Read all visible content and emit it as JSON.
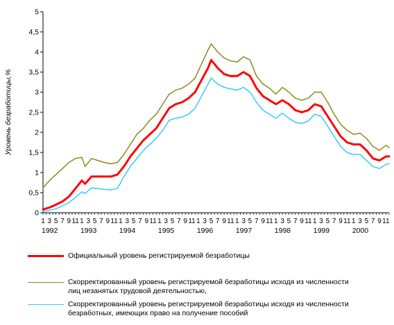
{
  "chart_data": {
    "type": "line",
    "title": "",
    "ylabel": "Уровень безработицы,%",
    "xlabel": "",
    "ylim": [
      0,
      5
    ],
    "yticks": [
      "0",
      "0,5",
      "1",
      "1,5",
      "2",
      "2,5",
      "3",
      "3,5",
      "4",
      "4,5",
      "5"
    ],
    "grid": false,
    "legend_position": "bottom",
    "month_tick_labels": "1 3 5 7 9 11",
    "year_labels": [
      "1992",
      "1993",
      "1994",
      "1995",
      "1996",
      "1997",
      "1998",
      "1999",
      "2000"
    ],
    "x_start": "1992-01",
    "x_end": "2000-12",
    "series": [
      {
        "name": "Официальный уровень регистрируемой безработицы",
        "color": "#ff0000",
        "width": 3,
        "points": [
          [
            "1992-01",
            0.08
          ],
          [
            "1992-03",
            0.13
          ],
          [
            "1992-05",
            0.2
          ],
          [
            "1992-07",
            0.28
          ],
          [
            "1992-09",
            0.4
          ],
          [
            "1992-11",
            0.6
          ],
          [
            "1993-01",
            0.8
          ],
          [
            "1993-02",
            0.72
          ],
          [
            "1993-04",
            0.9
          ],
          [
            "1993-06",
            0.9
          ],
          [
            "1993-08",
            0.9
          ],
          [
            "1993-10",
            0.9
          ],
          [
            "1993-12",
            0.95
          ],
          [
            "1994-02",
            1.15
          ],
          [
            "1994-04",
            1.4
          ],
          [
            "1994-06",
            1.6
          ],
          [
            "1994-08",
            1.8
          ],
          [
            "1994-10",
            1.95
          ],
          [
            "1994-12",
            2.1
          ],
          [
            "1995-02",
            2.35
          ],
          [
            "1995-04",
            2.6
          ],
          [
            "1995-06",
            2.7
          ],
          [
            "1995-08",
            2.75
          ],
          [
            "1995-10",
            2.85
          ],
          [
            "1995-12",
            3.0
          ],
          [
            "1996-02",
            3.3
          ],
          [
            "1996-04",
            3.6
          ],
          [
            "1996-05",
            3.8
          ],
          [
            "1996-07",
            3.6
          ],
          [
            "1996-09",
            3.45
          ],
          [
            "1996-11",
            3.4
          ],
          [
            "1997-01",
            3.4
          ],
          [
            "1997-03",
            3.5
          ],
          [
            "1997-05",
            3.4
          ],
          [
            "1997-07",
            3.1
          ],
          [
            "1997-09",
            2.9
          ],
          [
            "1997-11",
            2.8
          ],
          [
            "1998-01",
            2.7
          ],
          [
            "1998-03",
            2.8
          ],
          [
            "1998-05",
            2.7
          ],
          [
            "1998-07",
            2.55
          ],
          [
            "1998-09",
            2.5
          ],
          [
            "1998-11",
            2.55
          ],
          [
            "1999-01",
            2.7
          ],
          [
            "1999-03",
            2.65
          ],
          [
            "1999-05",
            2.4
          ],
          [
            "1999-07",
            2.15
          ],
          [
            "1999-09",
            1.9
          ],
          [
            "1999-11",
            1.75
          ],
          [
            "2000-01",
            1.7
          ],
          [
            "2000-03",
            1.7
          ],
          [
            "2000-05",
            1.55
          ],
          [
            "2000-07",
            1.35
          ],
          [
            "2000-09",
            1.3
          ],
          [
            "2000-11",
            1.4
          ],
          [
            "2000-12",
            1.4
          ]
        ]
      },
      {
        "name": "Скорректированный уровень регистрируемой безработицы исходя из численности лиц незанятых трудовой деятельностью,",
        "color": "#8b8b1a",
        "width": 1.5,
        "points": [
          [
            "1992-01",
            0.62
          ],
          [
            "1992-03",
            0.8
          ],
          [
            "1992-05",
            0.95
          ],
          [
            "1992-07",
            1.1
          ],
          [
            "1992-09",
            1.25
          ],
          [
            "1992-11",
            1.35
          ],
          [
            "1993-01",
            1.38
          ],
          [
            "1993-02",
            1.15
          ],
          [
            "1993-04",
            1.35
          ],
          [
            "1993-06",
            1.3
          ],
          [
            "1993-08",
            1.25
          ],
          [
            "1993-10",
            1.22
          ],
          [
            "1993-12",
            1.25
          ],
          [
            "1994-02",
            1.45
          ],
          [
            "1994-04",
            1.7
          ],
          [
            "1994-06",
            1.95
          ],
          [
            "1994-08",
            2.1
          ],
          [
            "1994-10",
            2.3
          ],
          [
            "1994-12",
            2.45
          ],
          [
            "1995-02",
            2.7
          ],
          [
            "1995-04",
            2.95
          ],
          [
            "1995-06",
            3.05
          ],
          [
            "1995-08",
            3.1
          ],
          [
            "1995-10",
            3.2
          ],
          [
            "1995-12",
            3.35
          ],
          [
            "1996-02",
            3.7
          ],
          [
            "1996-04",
            4.05
          ],
          [
            "1996-05",
            4.2
          ],
          [
            "1996-07",
            4.0
          ],
          [
            "1996-09",
            3.85
          ],
          [
            "1996-11",
            3.78
          ],
          [
            "1997-01",
            3.75
          ],
          [
            "1997-03",
            3.88
          ],
          [
            "1997-05",
            3.8
          ],
          [
            "1997-07",
            3.4
          ],
          [
            "1997-09",
            3.2
          ],
          [
            "1997-11",
            3.1
          ],
          [
            "1998-01",
            2.95
          ],
          [
            "1998-03",
            3.12
          ],
          [
            "1998-05",
            3.0
          ],
          [
            "1998-07",
            2.85
          ],
          [
            "1998-09",
            2.8
          ],
          [
            "1998-11",
            2.85
          ],
          [
            "1999-01",
            3.0
          ],
          [
            "1999-03",
            3.0
          ],
          [
            "1999-05",
            2.75
          ],
          [
            "1999-07",
            2.45
          ],
          [
            "1999-09",
            2.2
          ],
          [
            "1999-11",
            2.05
          ],
          [
            "2000-01",
            1.95
          ],
          [
            "2000-03",
            1.98
          ],
          [
            "2000-05",
            1.85
          ],
          [
            "2000-07",
            1.65
          ],
          [
            "2000-09",
            1.55
          ],
          [
            "2000-11",
            1.68
          ],
          [
            "2000-12",
            1.62
          ]
        ]
      },
      {
        "name": "Скорректированный уровень регистрируемой безработицы исходя из численности безработных, имеющих право на получение пособий",
        "color": "#33ccff",
        "width": 1.5,
        "points": [
          [
            "1992-01",
            0.03
          ],
          [
            "1992-03",
            0.06
          ],
          [
            "1992-05",
            0.1
          ],
          [
            "1992-07",
            0.17
          ],
          [
            "1992-09",
            0.25
          ],
          [
            "1992-11",
            0.38
          ],
          [
            "1993-01",
            0.52
          ],
          [
            "1993-02",
            0.48
          ],
          [
            "1993-04",
            0.62
          ],
          [
            "1993-06",
            0.6
          ],
          [
            "1993-08",
            0.58
          ],
          [
            "1993-10",
            0.57
          ],
          [
            "1993-12",
            0.6
          ],
          [
            "1994-02",
            0.9
          ],
          [
            "1994-04",
            1.15
          ],
          [
            "1994-06",
            1.35
          ],
          [
            "1994-08",
            1.55
          ],
          [
            "1994-10",
            1.7
          ],
          [
            "1994-12",
            1.85
          ],
          [
            "1995-02",
            2.05
          ],
          [
            "1995-04",
            2.3
          ],
          [
            "1995-06",
            2.35
          ],
          [
            "1995-08",
            2.38
          ],
          [
            "1995-10",
            2.45
          ],
          [
            "1995-12",
            2.6
          ],
          [
            "1996-02",
            2.9
          ],
          [
            "1996-04",
            3.2
          ],
          [
            "1996-05",
            3.35
          ],
          [
            "1996-07",
            3.2
          ],
          [
            "1996-09",
            3.12
          ],
          [
            "1996-11",
            3.08
          ],
          [
            "1997-01",
            3.05
          ],
          [
            "1997-03",
            3.12
          ],
          [
            "1997-05",
            3.0
          ],
          [
            "1997-07",
            2.75
          ],
          [
            "1997-09",
            2.55
          ],
          [
            "1997-11",
            2.45
          ],
          [
            "1998-01",
            2.35
          ],
          [
            "1998-03",
            2.48
          ],
          [
            "1998-05",
            2.35
          ],
          [
            "1998-07",
            2.25
          ],
          [
            "1998-09",
            2.22
          ],
          [
            "1998-11",
            2.28
          ],
          [
            "1999-01",
            2.45
          ],
          [
            "1999-03",
            2.4
          ],
          [
            "1999-05",
            2.15
          ],
          [
            "1999-07",
            1.9
          ],
          [
            "1999-09",
            1.65
          ],
          [
            "1999-11",
            1.5
          ],
          [
            "2000-01",
            1.45
          ],
          [
            "2000-03",
            1.45
          ],
          [
            "2000-05",
            1.3
          ],
          [
            "2000-07",
            1.15
          ],
          [
            "2000-09",
            1.1
          ],
          [
            "2000-11",
            1.2
          ],
          [
            "2000-12",
            1.22
          ]
        ]
      }
    ]
  },
  "legend": {
    "items": [
      "Официальный уровень регистрируемой безработицы",
      "Скорректированный уровень регистрируемой безработицы исходя из численности лиц незанятых трудовой деятельностью,",
      "Скорректированный уровень регистрируемой безработицы исходя из численности безработных, имеющих право на получение пособий"
    ]
  }
}
